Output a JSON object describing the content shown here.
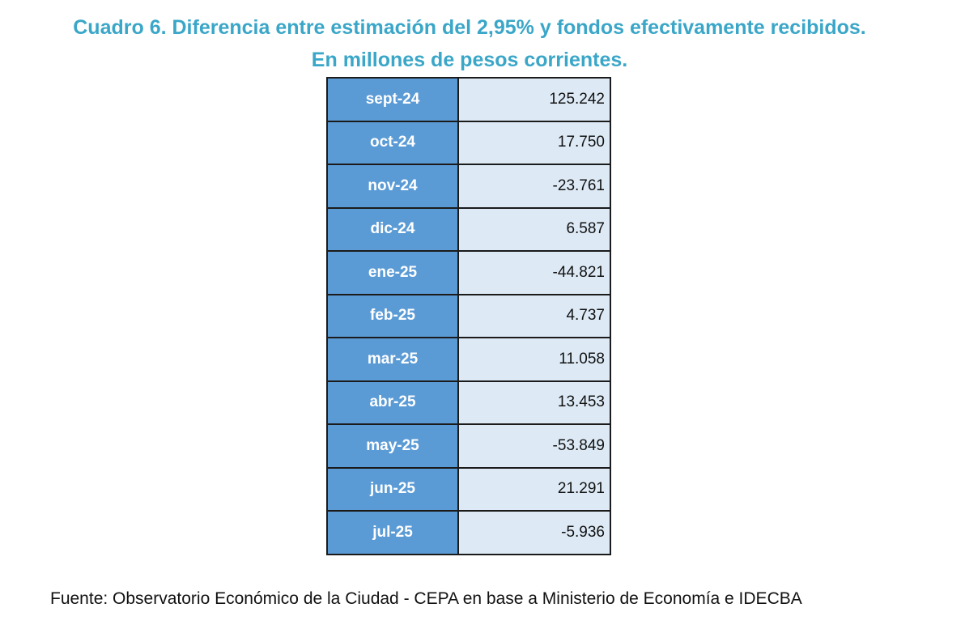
{
  "title": {
    "line1": "Cuadro 6. Diferencia entre estimación del 2,95% y fondos efectivamente recibidos.",
    "line2": "En millones de pesos corrientes."
  },
  "chart_data": {
    "type": "table",
    "rows": [
      {
        "label": "sept-24",
        "value": "125.242"
      },
      {
        "label": "oct-24",
        "value": "17.750"
      },
      {
        "label": "nov-24",
        "value": "-23.761"
      },
      {
        "label": "dic-24",
        "value": "6.587"
      },
      {
        "label": "ene-25",
        "value": "-44.821"
      },
      {
        "label": "feb-25",
        "value": "4.737"
      },
      {
        "label": "mar-25",
        "value": "11.058"
      },
      {
        "label": "abr-25",
        "value": "13.453"
      },
      {
        "label": "may-25",
        "value": "-53.849"
      },
      {
        "label": "jun-25",
        "value": "21.291"
      },
      {
        "label": "jul-25",
        "value": "-5.936"
      }
    ]
  },
  "source": "Fuente: Observatorio Económico de la Ciudad - CEPA en base a Ministerio de Economía e IDECBA",
  "colors": {
    "title": "#3aa6c8",
    "month_cell": "#5b9bd5",
    "value_cell": "#ddeaf6",
    "border": "#1b1b1b"
  }
}
